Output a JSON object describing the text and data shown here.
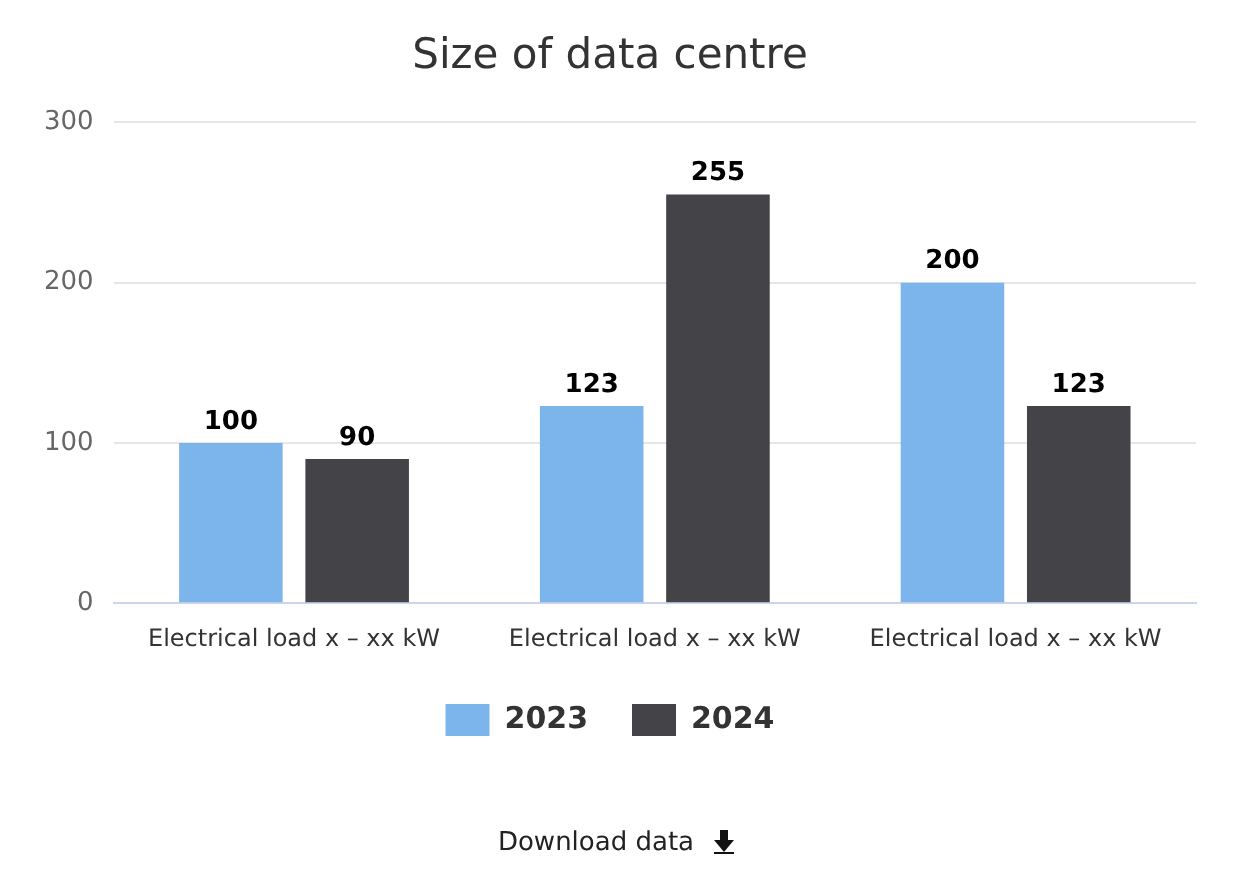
{
  "chart_data": {
    "type": "bar",
    "title": "Size of data centre",
    "categories": [
      "Electrical load x – xx kW",
      "Electrical load x – xx kW",
      "Electrical load x – xx kW"
    ],
    "series": [
      {
        "name": "2023",
        "color": "#7cb5ec",
        "values": [
          100,
          123,
          200
        ]
      },
      {
        "name": "2024",
        "color": "#434348",
        "values": [
          90,
          255,
          123
        ]
      }
    ],
    "ylim": [
      0,
      300
    ],
    "yticks": [
      0,
      100,
      200,
      300
    ],
    "grid": "y",
    "legend": "bottom",
    "data_labels": true,
    "annotations": [
      "Download data"
    ]
  }
}
